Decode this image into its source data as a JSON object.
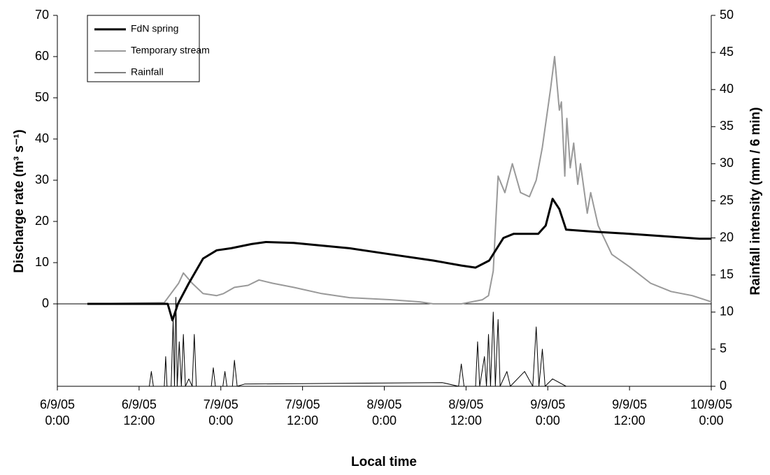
{
  "chart_data": {
    "type": "line",
    "xlabel": "Local time",
    "ylabel": "Discharge rate (m³ s⁻¹)",
    "y2label": "Rainfall intensity (mm / 6 min)",
    "xlim": [
      0,
      96
    ],
    "xticks": [
      {
        "value": 0,
        "label": "6/9/05 0:00"
      },
      {
        "value": 12,
        "label": "6/9/05 12:00"
      },
      {
        "value": 24,
        "label": "7/9/05 0:00"
      },
      {
        "value": 36,
        "label": "7/9/05 12:00"
      },
      {
        "value": 48,
        "label": "8/9/05 0:00"
      },
      {
        "value": 60,
        "label": "8/9/05 12:00"
      },
      {
        "value": 72,
        "label": "9/9/05 0:00"
      },
      {
        "value": 84,
        "label": "9/9/05 12:00"
      },
      {
        "value": 96,
        "label": "10/9/05 0:00"
      }
    ],
    "ylim": [
      -20,
      70
    ],
    "yticks": [
      0,
      10,
      20,
      30,
      40,
      50,
      60,
      70
    ],
    "y2lim": [
      0,
      50
    ],
    "y2ticks": [
      0,
      5,
      10,
      15,
      20,
      25,
      30,
      35,
      40,
      45,
      50
    ],
    "legend": "upper-left",
    "series": [
      {
        "name": "FdN spring",
        "color": "#000000",
        "x": [
          4.4,
          16.2,
          16.9,
          17.7,
          19.3,
          21.4,
          23.4,
          25.5,
          28.5,
          30.6,
          34.7,
          42.9,
          49,
          55.2,
          59.3,
          61.4,
          63.4,
          65.5,
          67,
          70.6,
          71.7,
          72.7,
          73.7,
          74.7,
          78.9,
          84,
          94.3,
          96
        ],
        "values": [
          0,
          0,
          -4,
          0,
          5,
          11,
          13,
          13.5,
          14.5,
          15,
          14.8,
          13.5,
          12,
          10.5,
          9.3,
          8.8,
          10.5,
          16,
          17,
          17,
          19,
          25.5,
          23,
          18,
          17.5,
          17,
          15.8,
          15.8
        ]
      },
      {
        "name": "Temporary stream",
        "color": "#999999",
        "x": [
          4.4,
          15.7,
          17.8,
          18.5,
          19.8,
          21.4,
          23.4,
          24.4,
          26,
          28,
          29.6,
          31.6,
          34.7,
          38.8,
          42.9,
          49,
          53.2,
          55.2,
          59.3,
          62.4,
          63.3,
          64,
          64.7,
          65.7,
          66.8,
          68,
          69.3,
          70.3,
          71.2,
          72.4,
          73,
          73.7,
          74,
          74.5,
          74.8,
          75.3,
          75.8,
          76.4,
          76.8,
          77.8,
          78.3,
          79.4,
          81.4,
          84,
          87.1,
          90.1,
          93.2,
          96
        ],
        "values": [
          0,
          0.3,
          5,
          7.5,
          5,
          2.5,
          2,
          2.5,
          4,
          4.5,
          5.8,
          5,
          4,
          2.5,
          1.5,
          1,
          0.5,
          0,
          0,
          1,
          2,
          8,
          31,
          27,
          34,
          27,
          26,
          30,
          38,
          52,
          60,
          47,
          49,
          31,
          45,
          33,
          39,
          29,
          34,
          22,
          27,
          19,
          12,
          9,
          5,
          3,
          2,
          0.5
        ]
      },
      {
        "name": "Rainfall",
        "color": "#000000",
        "axis": "y2",
        "x": [
          0,
          13.5,
          13.8,
          14.1,
          15.7,
          15.9,
          16.1,
          16.7,
          17.0,
          17.2,
          17.4,
          17.6,
          17.9,
          18.2,
          18.5,
          18.8,
          19.3,
          19.8,
          20.1,
          20.4,
          22.6,
          22.9,
          23.2,
          24.3,
          24.6,
          24.9,
          25.7,
          26.0,
          26.4,
          27.5,
          56.5,
          58.9,
          59.3,
          59.7,
          61.4,
          61.7,
          62.0,
          62.7,
          63.0,
          63.3,
          63.6,
          64.0,
          64.3,
          64.7,
          65.0,
          66.0,
          66.5,
          68.6,
          69.8,
          70.3,
          70.7,
          71.2,
          71.6,
          72.7,
          74.7
        ],
        "values": [
          0,
          0,
          2,
          0,
          0,
          4,
          0,
          0,
          9,
          0,
          12,
          0,
          6,
          0,
          7,
          0,
          1,
          0,
          7,
          0,
          0,
          2.5,
          0,
          0,
          2,
          0,
          0,
          3.5,
          0,
          0.3,
          0.5,
          0,
          3,
          0,
          0,
          6,
          0,
          4,
          0,
          7,
          0,
          10,
          0,
          9,
          0,
          2,
          0,
          2,
          0,
          8,
          0,
          5,
          0,
          1,
          0
        ]
      }
    ]
  }
}
